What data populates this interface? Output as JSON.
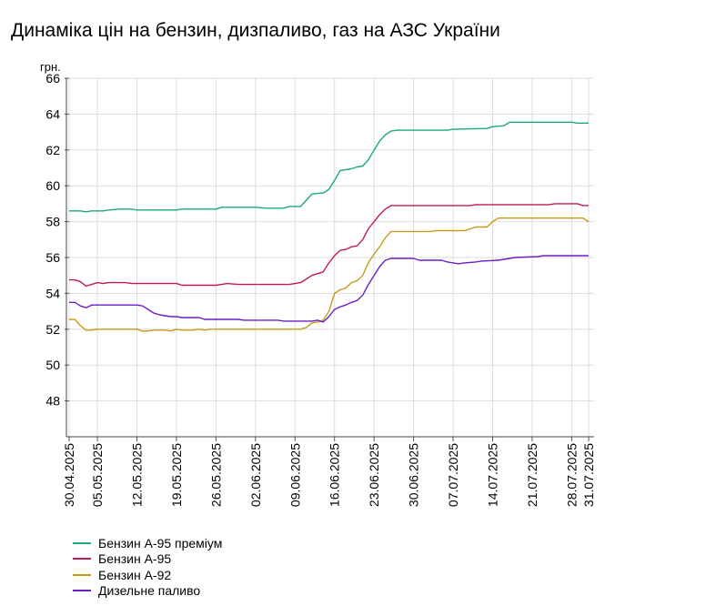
{
  "title": "Динаміка цін на бензин, дизпаливо, газ на АЗС України",
  "chart_data": {
    "type": "line",
    "title": "Динаміка цін на бензин, дизпаливо, газ на АЗС України",
    "ylabel": "грн.",
    "xlabel": "",
    "ylim": [
      46,
      66
    ],
    "yticks": [
      48,
      50,
      52,
      54,
      56,
      58,
      60,
      62,
      64,
      66
    ],
    "xlim": [
      "2025-04-30",
      "2025-07-31"
    ],
    "xticks": [
      "30.04.2025",
      "05.05.2025",
      "12.05.2025",
      "19.05.2025",
      "26.05.2025",
      "02.06.2025",
      "09.06.2025",
      "16.06.2025",
      "23.06.2025",
      "30.06.2025",
      "07.07.2025",
      "14.07.2025",
      "21.07.2025",
      "28.07.2025",
      "31.07.2025"
    ],
    "grid": true,
    "legend_position": "bottom-left",
    "series": [
      {
        "name": "Бензин А-95 преміум",
        "color": "#1ba882",
        "points": [
          [
            "2025-04-30",
            58.6
          ],
          [
            "2025-05-02",
            58.6
          ],
          [
            "2025-05-03",
            58.55
          ],
          [
            "2025-05-04",
            58.6
          ],
          [
            "2025-05-06",
            58.6
          ],
          [
            "2025-05-07",
            58.65
          ],
          [
            "2025-05-09",
            58.7
          ],
          [
            "2025-05-11",
            58.7
          ],
          [
            "2025-05-12",
            58.65
          ],
          [
            "2025-05-19",
            58.65
          ],
          [
            "2025-05-20",
            58.7
          ],
          [
            "2025-05-26",
            58.7
          ],
          [
            "2025-05-27",
            58.8
          ],
          [
            "2025-06-02",
            58.8
          ],
          [
            "2025-06-04",
            58.75
          ],
          [
            "2025-06-07",
            58.75
          ],
          [
            "2025-06-08",
            58.85
          ],
          [
            "2025-06-10",
            58.85
          ],
          [
            "2025-06-11",
            59.2
          ],
          [
            "2025-06-12",
            59.55
          ],
          [
            "2025-06-14",
            59.6
          ],
          [
            "2025-06-15",
            59.8
          ],
          [
            "2025-06-16",
            60.3
          ],
          [
            "2025-06-17",
            60.85
          ],
          [
            "2025-06-19",
            60.95
          ],
          [
            "2025-06-20",
            61.05
          ],
          [
            "2025-06-21",
            61.1
          ],
          [
            "2025-06-22",
            61.45
          ],
          [
            "2025-06-23",
            62.0
          ],
          [
            "2025-06-24",
            62.5
          ],
          [
            "2025-06-25",
            62.85
          ],
          [
            "2025-06-26",
            63.05
          ],
          [
            "2025-06-27",
            63.1
          ],
          [
            "2025-07-06",
            63.1
          ],
          [
            "2025-07-07",
            63.15
          ],
          [
            "2025-07-13",
            63.2
          ],
          [
            "2025-07-14",
            63.3
          ],
          [
            "2025-07-16",
            63.35
          ],
          [
            "2025-07-17",
            63.55
          ],
          [
            "2025-07-28",
            63.55
          ],
          [
            "2025-07-29",
            63.5
          ],
          [
            "2025-07-31",
            63.5
          ]
        ]
      },
      {
        "name": "Бензин А-95",
        "color": "#c2185b",
        "points": [
          [
            "2025-04-30",
            54.75
          ],
          [
            "2025-05-01",
            54.75
          ],
          [
            "2025-05-02",
            54.65
          ],
          [
            "2025-05-03",
            54.4
          ],
          [
            "2025-05-04",
            54.5
          ],
          [
            "2025-05-05",
            54.6
          ],
          [
            "2025-05-06",
            54.55
          ],
          [
            "2025-05-07",
            54.6
          ],
          [
            "2025-05-09",
            54.6
          ],
          [
            "2025-05-10",
            54.6
          ],
          [
            "2025-05-11",
            54.55
          ],
          [
            "2025-05-19",
            54.55
          ],
          [
            "2025-05-20",
            54.45
          ],
          [
            "2025-05-26",
            54.45
          ],
          [
            "2025-05-27",
            54.5
          ],
          [
            "2025-05-28",
            54.55
          ],
          [
            "2025-05-30",
            54.5
          ],
          [
            "2025-06-08",
            54.5
          ],
          [
            "2025-06-09",
            54.55
          ],
          [
            "2025-06-10",
            54.6
          ],
          [
            "2025-06-11",
            54.8
          ],
          [
            "2025-06-12",
            55.0
          ],
          [
            "2025-06-13",
            55.1
          ],
          [
            "2025-06-14",
            55.2
          ],
          [
            "2025-06-15",
            55.7
          ],
          [
            "2025-06-16",
            56.1
          ],
          [
            "2025-06-17",
            56.4
          ],
          [
            "2025-06-18",
            56.45
          ],
          [
            "2025-06-19",
            56.6
          ],
          [
            "2025-06-20",
            56.65
          ],
          [
            "2025-06-21",
            57.0
          ],
          [
            "2025-06-22",
            57.6
          ],
          [
            "2025-06-23",
            58.0
          ],
          [
            "2025-06-24",
            58.4
          ],
          [
            "2025-06-25",
            58.7
          ],
          [
            "2025-06-26",
            58.9
          ],
          [
            "2025-07-10",
            58.9
          ],
          [
            "2025-07-11",
            58.95
          ],
          [
            "2025-07-24",
            58.95
          ],
          [
            "2025-07-25",
            59.0
          ],
          [
            "2025-07-29",
            59.0
          ],
          [
            "2025-07-30",
            58.9
          ],
          [
            "2025-07-31",
            58.9
          ]
        ]
      },
      {
        "name": "Бензин А-92",
        "color": "#c79a1e",
        "points": [
          [
            "2025-04-30",
            52.55
          ],
          [
            "2025-05-01",
            52.55
          ],
          [
            "2025-05-02",
            52.2
          ],
          [
            "2025-05-03",
            51.95
          ],
          [
            "2025-05-04",
            51.95
          ],
          [
            "2025-05-05",
            52.0
          ],
          [
            "2025-05-12",
            52.0
          ],
          [
            "2025-05-13",
            51.9
          ],
          [
            "2025-05-14",
            51.9
          ],
          [
            "2025-05-15",
            51.95
          ],
          [
            "2025-05-17",
            51.95
          ],
          [
            "2025-05-18",
            51.9
          ],
          [
            "2025-05-19",
            52.0
          ],
          [
            "2025-05-20",
            51.95
          ],
          [
            "2025-05-22",
            51.95
          ],
          [
            "2025-05-23",
            52.0
          ],
          [
            "2025-05-24",
            51.95
          ],
          [
            "2025-05-25",
            52.0
          ],
          [
            "2025-06-10",
            52.0
          ],
          [
            "2025-06-11",
            52.1
          ],
          [
            "2025-06-12",
            52.35
          ],
          [
            "2025-06-13",
            52.4
          ],
          [
            "2025-06-14",
            52.5
          ],
          [
            "2025-06-15",
            53.0
          ],
          [
            "2025-06-16",
            54.0
          ],
          [
            "2025-06-17",
            54.2
          ],
          [
            "2025-06-18",
            54.3
          ],
          [
            "2025-06-19",
            54.6
          ],
          [
            "2025-06-20",
            54.7
          ],
          [
            "2025-06-21",
            55.0
          ],
          [
            "2025-06-22",
            55.7
          ],
          [
            "2025-06-23",
            56.2
          ],
          [
            "2025-06-24",
            56.6
          ],
          [
            "2025-06-25",
            57.1
          ],
          [
            "2025-06-26",
            57.45
          ],
          [
            "2025-07-03",
            57.45
          ],
          [
            "2025-07-04",
            57.5
          ],
          [
            "2025-07-09",
            57.5
          ],
          [
            "2025-07-10",
            57.6
          ],
          [
            "2025-07-11",
            57.7
          ],
          [
            "2025-07-13",
            57.7
          ],
          [
            "2025-07-14",
            58.0
          ],
          [
            "2025-07-15",
            58.2
          ],
          [
            "2025-07-30",
            58.2
          ],
          [
            "2025-07-31",
            58.0
          ]
        ]
      },
      {
        "name": "Дизельне паливо",
        "color": "#6a1fc9",
        "points": [
          [
            "2025-04-30",
            53.5
          ],
          [
            "2025-05-01",
            53.5
          ],
          [
            "2025-05-02",
            53.3
          ],
          [
            "2025-05-03",
            53.2
          ],
          [
            "2025-05-04",
            53.35
          ],
          [
            "2025-05-12",
            53.35
          ],
          [
            "2025-05-13",
            53.3
          ],
          [
            "2025-05-14",
            53.1
          ],
          [
            "2025-05-15",
            52.9
          ],
          [
            "2025-05-16",
            52.8
          ],
          [
            "2025-05-17",
            52.75
          ],
          [
            "2025-05-18",
            52.7
          ],
          [
            "2025-05-19",
            52.7
          ],
          [
            "2025-05-20",
            52.65
          ],
          [
            "2025-05-23",
            52.65
          ],
          [
            "2025-05-24",
            52.55
          ],
          [
            "2025-05-30",
            52.55
          ],
          [
            "2025-05-31",
            52.5
          ],
          [
            "2025-06-06",
            52.5
          ],
          [
            "2025-06-07",
            52.45
          ],
          [
            "2025-06-12",
            52.45
          ],
          [
            "2025-06-13",
            52.5
          ],
          [
            "2025-06-14",
            52.4
          ],
          [
            "2025-06-15",
            52.7
          ],
          [
            "2025-06-16",
            53.1
          ],
          [
            "2025-06-17",
            53.25
          ],
          [
            "2025-06-18",
            53.35
          ],
          [
            "2025-06-19",
            53.5
          ],
          [
            "2025-06-20",
            53.6
          ],
          [
            "2025-06-21",
            53.9
          ],
          [
            "2025-06-22",
            54.5
          ],
          [
            "2025-06-23",
            55.0
          ],
          [
            "2025-06-24",
            55.5
          ],
          [
            "2025-06-25",
            55.85
          ],
          [
            "2025-06-26",
            55.95
          ],
          [
            "2025-06-30",
            55.95
          ],
          [
            "2025-07-01",
            55.85
          ],
          [
            "2025-07-05",
            55.85
          ],
          [
            "2025-07-06",
            55.75
          ],
          [
            "2025-07-07",
            55.7
          ],
          [
            "2025-07-08",
            55.65
          ],
          [
            "2025-07-09",
            55.7
          ],
          [
            "2025-07-11",
            55.75
          ],
          [
            "2025-07-12",
            55.8
          ],
          [
            "2025-07-15",
            55.85
          ],
          [
            "2025-07-17",
            55.95
          ],
          [
            "2025-07-18",
            56.0
          ],
          [
            "2025-07-22",
            56.05
          ],
          [
            "2025-07-23",
            56.1
          ],
          [
            "2025-07-31",
            56.1
          ]
        ]
      }
    ]
  }
}
